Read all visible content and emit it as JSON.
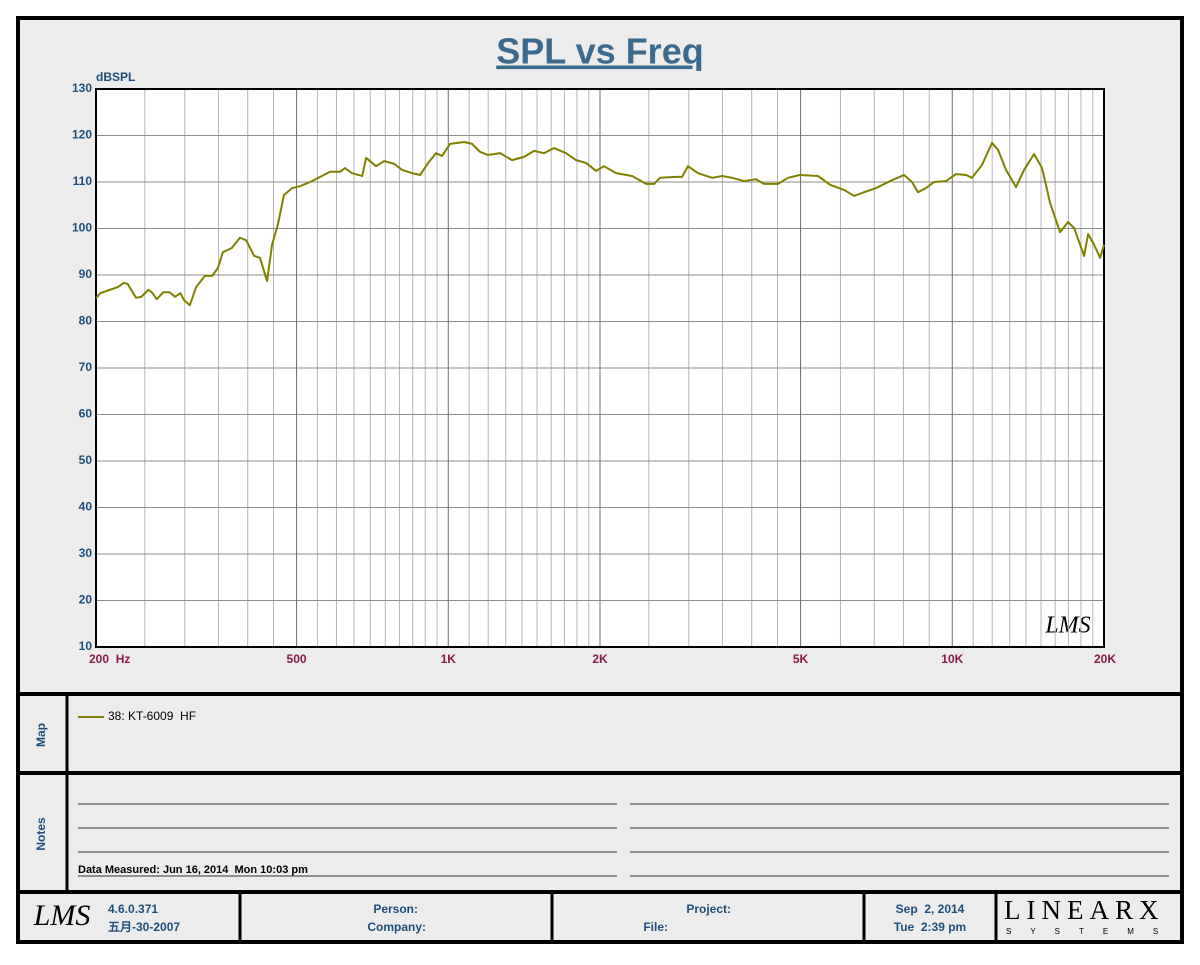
{
  "chart_data": {
    "type": "line",
    "title": "SPL vs Freq",
    "y_label": "dBSPL",
    "xscale": "log",
    "xlim": [
      200,
      20000
    ],
    "ylim": [
      10,
      130
    ],
    "xticks": [
      {
        "value": 200,
        "label": "200  Hz"
      },
      500,
      {
        "value": 1000,
        "label": "1K"
      },
      {
        "value": 2000,
        "label": "2K"
      },
      {
        "value": 5000,
        "label": "5K"
      },
      {
        "value": 10000,
        "label": "10K"
      },
      {
        "value": 20000,
        "label": "20K"
      }
    ],
    "xgrid": [
      250,
      300,
      350,
      400,
      450,
      550,
      600,
      650,
      700,
      750,
      800,
      850,
      900,
      950,
      1100,
      1200,
      1300,
      1400,
      1500,
      1600,
      1700,
      1800,
      1900,
      2500,
      3000,
      3500,
      4000,
      4500,
      6000,
      7000,
      8000,
      9000,
      11000,
      12000,
      13000,
      14000,
      15000,
      16000,
      17000,
      18000,
      19000
    ],
    "yticks": [
      10,
      20,
      30,
      40,
      50,
      60,
      70,
      80,
      90,
      100,
      110,
      120,
      130
    ],
    "grid": true,
    "x": [
      200,
      204,
      213,
      221,
      227,
      231,
      235,
      240,
      246,
      254,
      258,
      264,
      272,
      280,
      287,
      294,
      299,
      307,
      316,
      329,
      340,
      349,
      357,
      372,
      386,
      397,
      412,
      423,
      437,
      447,
      459,
      472,
      490,
      508,
      532,
      557,
      583,
      610,
      624,
      644,
      675,
      687,
      719,
      746,
      781,
      810,
      848,
      879,
      912,
      946,
      972,
      1008,
      1075,
      1115,
      1156,
      1199,
      1267,
      1338,
      1414,
      1479,
      1549,
      1621,
      1713,
      1793,
      1876,
      1964,
      2037,
      2152,
      2315,
      2469,
      2560,
      2631,
      2830,
      2909,
      2990,
      3130,
      3338,
      3494,
      3657,
      3862,
      4079,
      4230,
      4510,
      4721,
      4988,
      5414,
      5721,
      6100,
      6384,
      6682,
      7060,
      7524,
      8022,
      8318,
      8550,
      8868,
      9200,
      9722,
      10173,
      10650,
      10946,
      11457,
      11993,
      12326,
      12782,
      13381,
      13880,
      14528,
      15071,
      15633,
      16362,
      16974,
      17446,
      18261,
      18599,
      19115,
      19641,
      20000
    ],
    "series": [
      {
        "name": "38: KT-6009  HF",
        "color": "#808000",
        "values": [
          85,
          86.1,
          86.8,
          87.4,
          88.3,
          88.1,
          86.8,
          85.1,
          85.3,
          86.8,
          86.3,
          84.8,
          86.3,
          86.3,
          85.3,
          86.1,
          84.6,
          83.5,
          87.4,
          89.8,
          89.8,
          91.5,
          94.9,
          95.8,
          98,
          97.5,
          94.1,
          93.7,
          88.7,
          96.5,
          100.8,
          107.2,
          108.7,
          109.1,
          110,
          111.1,
          112.2,
          112.2,
          113,
          111.9,
          111.3,
          115.2,
          113.4,
          114.5,
          113.9,
          112.6,
          111.9,
          111.5,
          114.1,
          116.2,
          115.6,
          118.2,
          118.6,
          118.2,
          116.5,
          115.8,
          116.2,
          114.7,
          115.4,
          116.7,
          116.2,
          117.3,
          116.2,
          114.7,
          114.1,
          112.4,
          113.4,
          111.9,
          111.3,
          109.6,
          109.6,
          110.9,
          111.1,
          111.1,
          113.4,
          111.9,
          110.9,
          111.3,
          110.9,
          110.2,
          110.6,
          109.6,
          109.6,
          110.9,
          111.5,
          111.3,
          109.4,
          108.3,
          107,
          107.8,
          108.7,
          110.2,
          111.5,
          110,
          107.8,
          108.7,
          110,
          110.2,
          111.7,
          111.5,
          110.9,
          113.7,
          118.4,
          116.9,
          112.6,
          108.9,
          112.6,
          116,
          113,
          105.5,
          99.2,
          101.4,
          100.1,
          94.1,
          98.8,
          96.5,
          93.7,
          96.5
        ]
      }
    ],
    "watermark": "LMS"
  },
  "map": {
    "label": "Map"
  },
  "notes": {
    "label": "Notes",
    "data_measured": "Data Measured: Jun 16, 2014  Mon 10:03 pm"
  },
  "footer": {
    "logo": "LMS",
    "version": "4.6.0.371",
    "build_date": "五月-30-2007",
    "person": "Person:",
    "company": "Company:",
    "project": "Project:",
    "file": "File:",
    "date": "Sep  2, 2014",
    "time": "Tue  2:39 pm",
    "brand": "LINEARX",
    "brand_sub": "SYSTEMS"
  }
}
